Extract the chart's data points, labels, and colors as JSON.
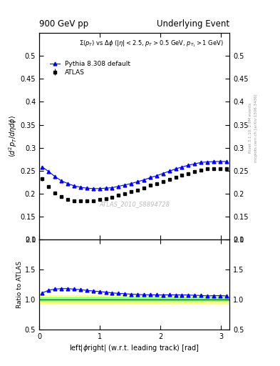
{
  "title_left": "900 GeV pp",
  "title_right": "Underlying Event",
  "annotation": "ATLAS_2010_S8894728",
  "subtitle": "$\\Sigma(p_T)$ vs $\\Delta\\phi$ ($|\\eta| < 2.5$, $p_T > 0.5$ GeV, $p_{T_1} > 1$ GeV)",
  "ylabel_main": "$\\langle d^2 p_T / d\\eta d\\phi \\rangle$",
  "ylabel_ratio": "Ratio to ATLAS",
  "xlabel": "left|$\\phi$right| (w.r.t. leading track) [rad]",
  "right_label": "Rivet 3.1.10, 2.9M events",
  "right_label2": "mcplots.cern.ch [arXiv:1306.3436]",
  "ylim_main": [
    0.1,
    0.55
  ],
  "ylim_ratio": [
    0.5,
    2.0
  ],
  "yticks_main": [
    0.1,
    0.15,
    0.2,
    0.25,
    0.3,
    0.35,
    0.4,
    0.45,
    0.5
  ],
  "yticks_ratio": [
    0.5,
    1.0,
    1.5,
    2.0
  ],
  "xlim": [
    0,
    3.14159
  ],
  "xticks": [
    0,
    1,
    2,
    3
  ],
  "atlas_x": [
    0.052,
    0.157,
    0.262,
    0.366,
    0.471,
    0.576,
    0.681,
    0.785,
    0.89,
    0.995,
    1.1,
    1.204,
    1.309,
    1.414,
    1.518,
    1.623,
    1.728,
    1.833,
    1.937,
    2.042,
    2.147,
    2.252,
    2.356,
    2.461,
    2.566,
    2.67,
    2.775,
    2.88,
    2.985,
    3.09
  ],
  "atlas_y": [
    0.232,
    0.215,
    0.202,
    0.193,
    0.188,
    0.185,
    0.184,
    0.184,
    0.185,
    0.187,
    0.189,
    0.192,
    0.196,
    0.2,
    0.204,
    0.208,
    0.213,
    0.218,
    0.222,
    0.227,
    0.231,
    0.236,
    0.24,
    0.244,
    0.248,
    0.251,
    0.254,
    0.254,
    0.254,
    0.255
  ],
  "atlas_yerr": [
    0.004,
    0.003,
    0.003,
    0.003,
    0.003,
    0.003,
    0.003,
    0.003,
    0.003,
    0.003,
    0.003,
    0.003,
    0.003,
    0.003,
    0.003,
    0.003,
    0.003,
    0.003,
    0.003,
    0.003,
    0.003,
    0.003,
    0.003,
    0.003,
    0.003,
    0.003,
    0.003,
    0.003,
    0.003,
    0.003
  ],
  "mc_x": [
    0.052,
    0.157,
    0.262,
    0.366,
    0.471,
    0.576,
    0.681,
    0.785,
    0.89,
    0.995,
    1.1,
    1.204,
    1.309,
    1.414,
    1.518,
    1.623,
    1.728,
    1.833,
    1.937,
    2.042,
    2.147,
    2.252,
    2.356,
    2.461,
    2.566,
    2.67,
    2.775,
    2.88,
    2.985,
    3.09
  ],
  "mc_y": [
    0.258,
    0.248,
    0.237,
    0.228,
    0.222,
    0.217,
    0.214,
    0.212,
    0.211,
    0.211,
    0.212,
    0.213,
    0.216,
    0.219,
    0.222,
    0.226,
    0.23,
    0.235,
    0.239,
    0.244,
    0.249,
    0.254,
    0.258,
    0.262,
    0.265,
    0.268,
    0.269,
    0.27,
    0.27,
    0.27
  ],
  "ratio_mc_y": [
    1.11,
    1.154,
    1.174,
    1.181,
    1.181,
    1.173,
    1.163,
    1.152,
    1.141,
    1.131,
    1.122,
    1.109,
    1.102,
    1.095,
    1.088,
    1.083,
    1.08,
    1.078,
    1.077,
    1.075,
    1.078,
    1.076,
    1.075,
    1.074,
    1.069,
    1.067,
    1.059,
    1.063,
    1.063,
    1.059
  ],
  "green_band_y1": 0.97,
  "green_band_y2": 1.03,
  "yellow_band_y1": 0.93,
  "yellow_band_y2": 1.07,
  "atlas_color": "black",
  "mc_color": "blue",
  "legend_atlas": "ATLAS",
  "legend_mc": "Pythia 8.308 default"
}
